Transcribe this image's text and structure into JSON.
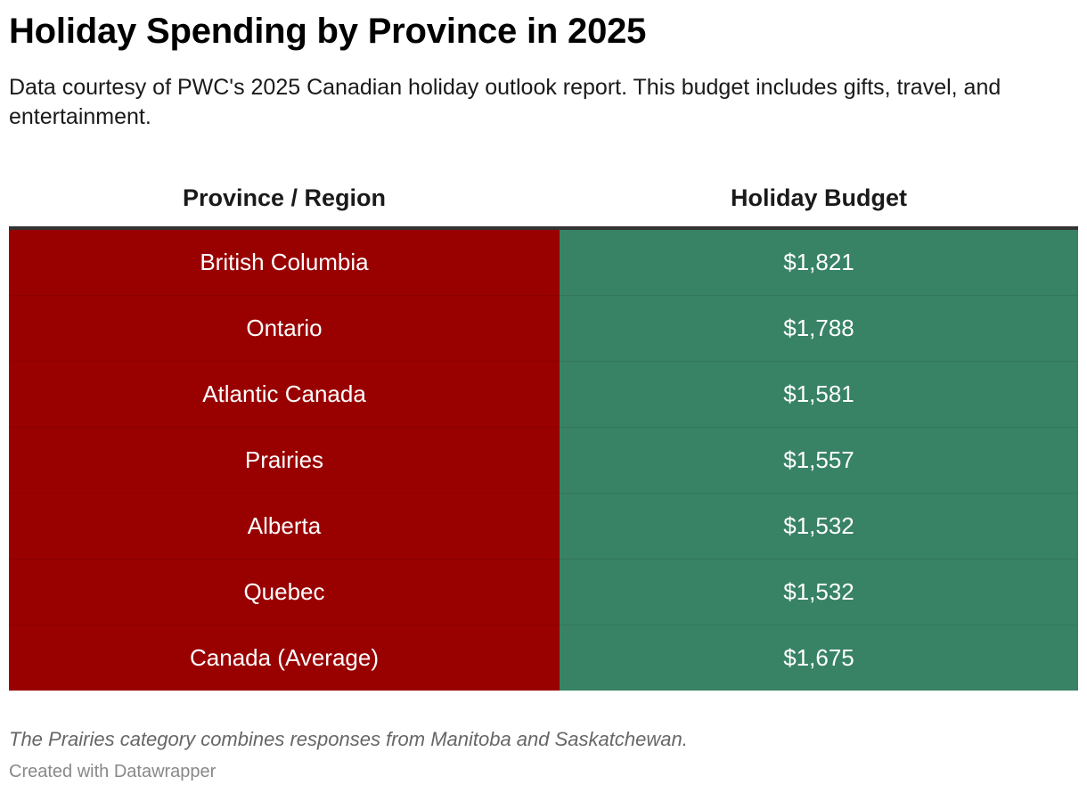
{
  "colors": {
    "region_cell": "#990000",
    "budget_cell": "#388266",
    "header_rule": "#333333"
  },
  "chart_data": {
    "type": "table",
    "title": "Holiday Spending by Province in 2025",
    "subtitle": "Data courtesy of PWC's 2025 Canadian holiday outlook report. This budget includes gifts, travel, and entertainment.",
    "columns": [
      "Province / Region",
      "Holiday Budget"
    ],
    "rows": [
      {
        "region": "British Columbia",
        "budget": "$1,821",
        "value": 1821
      },
      {
        "region": "Ontario",
        "budget": "$1,788",
        "value": 1788
      },
      {
        "region": "Atlantic Canada",
        "budget": "$1,581",
        "value": 1581
      },
      {
        "region": "Prairies",
        "budget": "$1,557",
        "value": 1557
      },
      {
        "region": "Alberta",
        "budget": "$1,532",
        "value": 1532
      },
      {
        "region": "Quebec",
        "budget": "$1,532",
        "value": 1532
      },
      {
        "region": "Canada (Average)",
        "budget": "$1,675",
        "value": 1675
      }
    ],
    "notes": "The Prairies category combines responses from Manitoba and Saskatchewan.",
    "credit": "Created with Datawrapper"
  }
}
